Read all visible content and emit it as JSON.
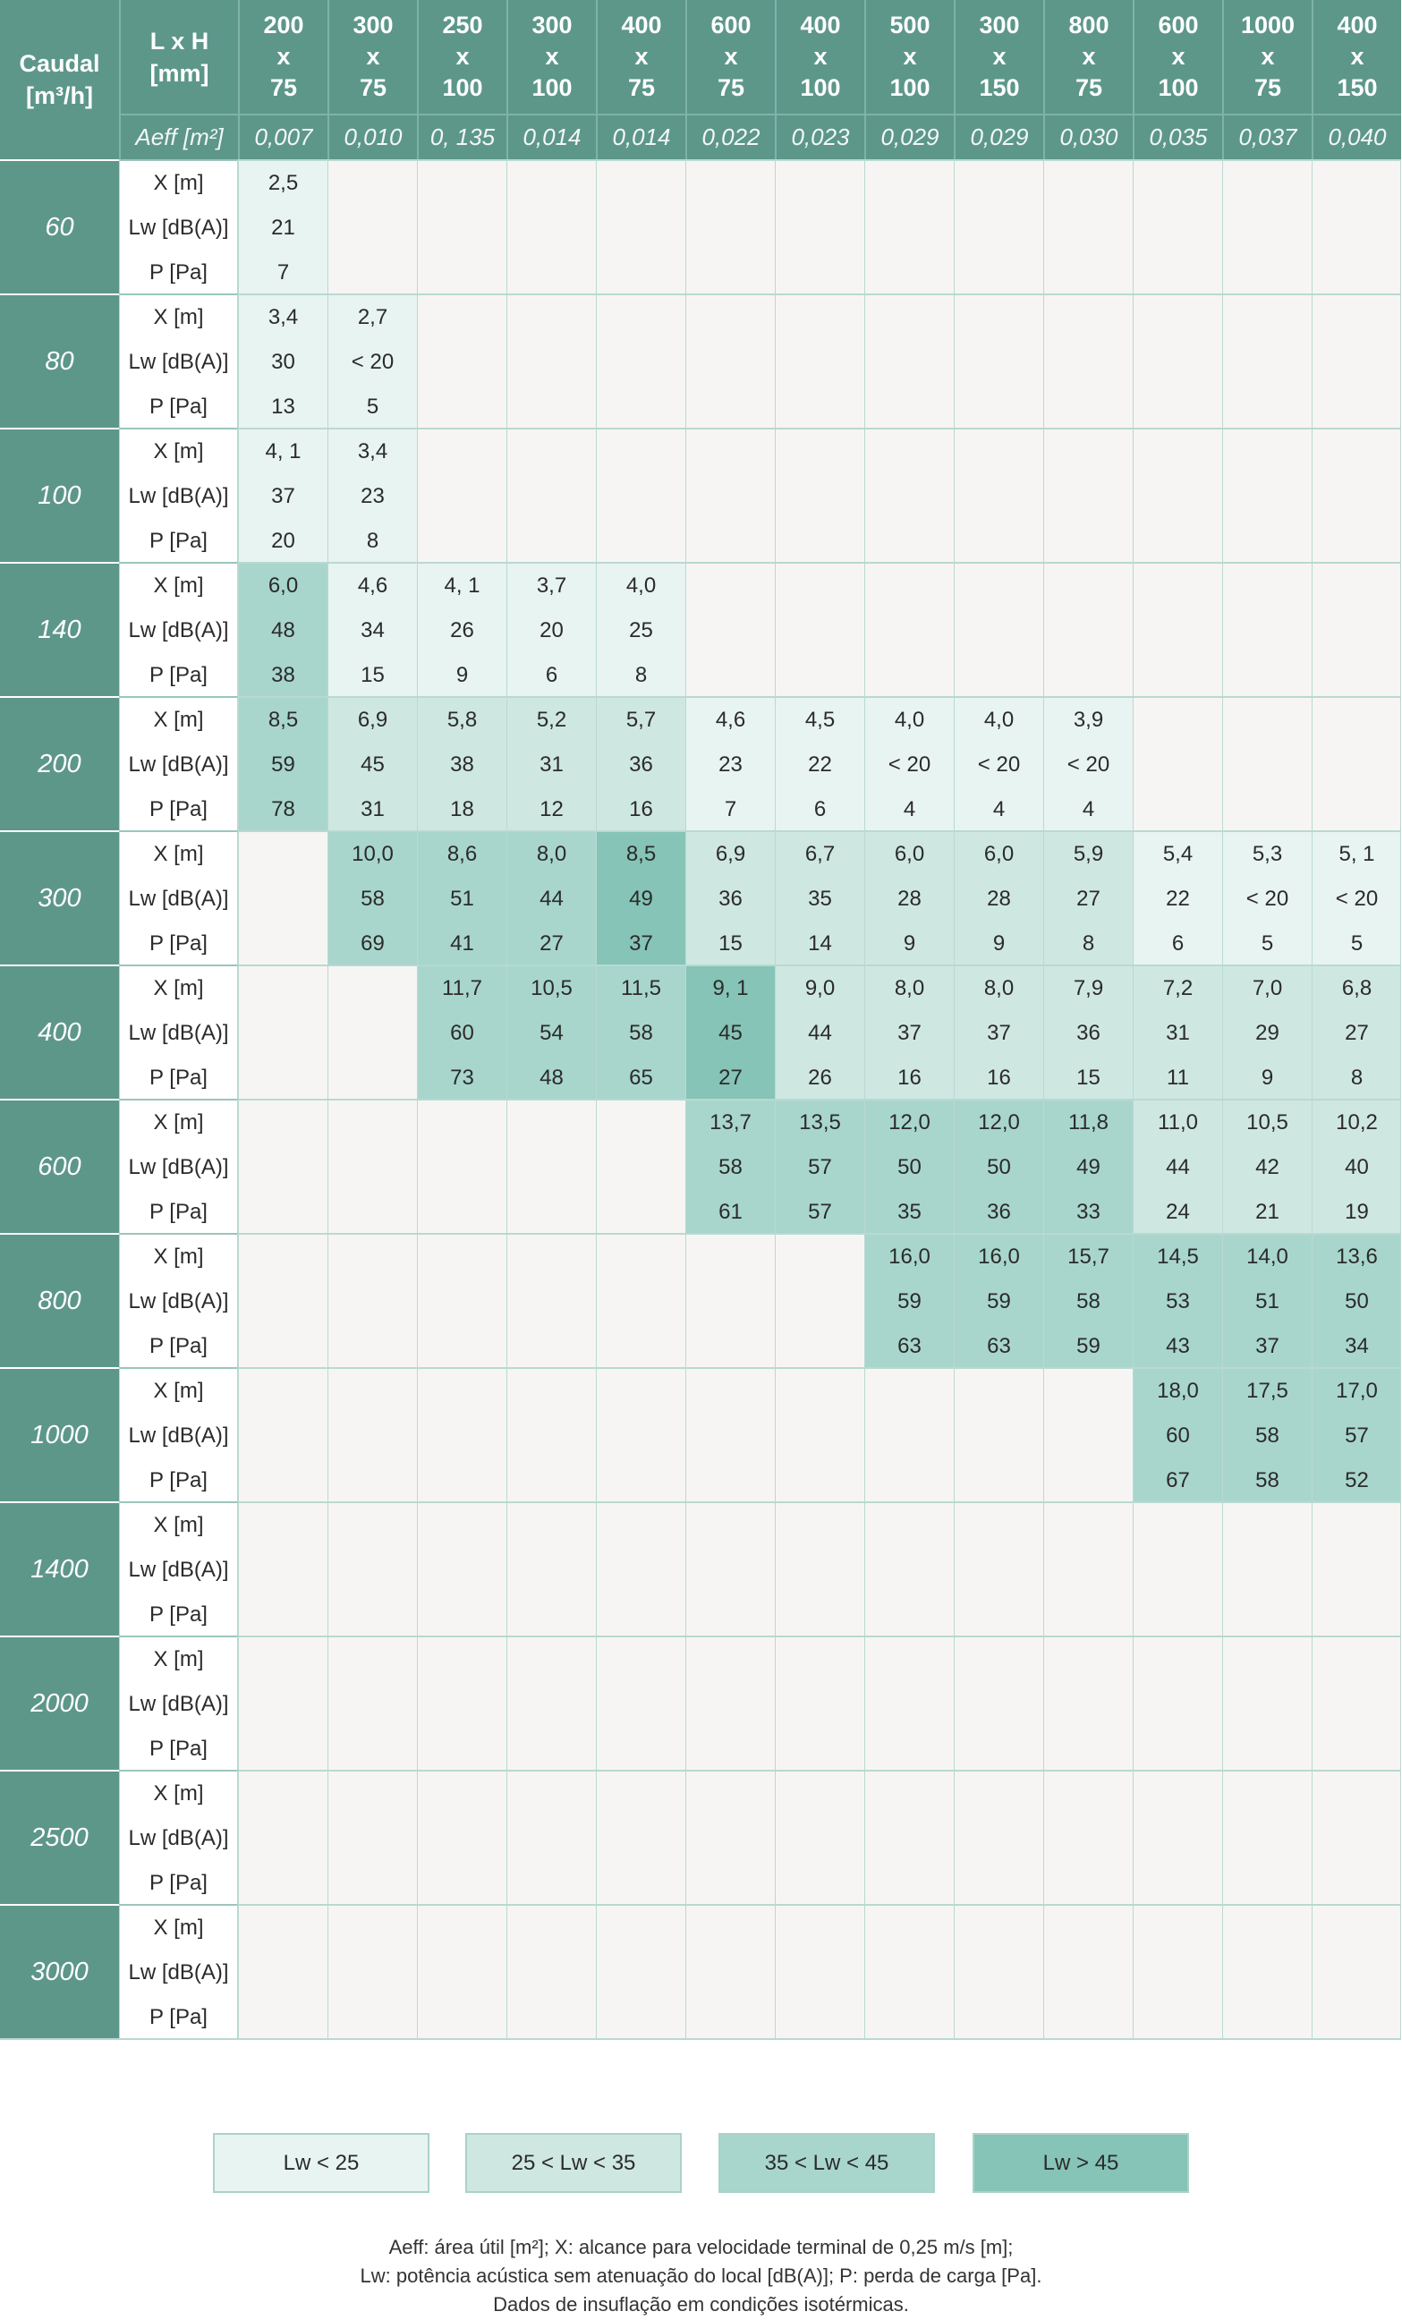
{
  "header": {
    "caudal_line1": "Caudal",
    "caudal_line2": "[m³/h]",
    "lxh_line1": "L x H",
    "lxh_line2": "[mm]",
    "aeff_label": "Aeff [m²]"
  },
  "columns": [
    {
      "w": "200",
      "x": "x",
      "h": "75",
      "aeff": "0,007"
    },
    {
      "w": "300",
      "x": "x",
      "h": "75",
      "aeff": "0,010"
    },
    {
      "w": "250",
      "x": "x",
      "h": "100",
      "aeff": "0, 135"
    },
    {
      "w": "300",
      "x": "x",
      "h": "100",
      "aeff": "0,014"
    },
    {
      "w": "400",
      "x": "x",
      "h": "75",
      "aeff": "0,014"
    },
    {
      "w": "600",
      "x": "x",
      "h": "75",
      "aeff": "0,022"
    },
    {
      "w": "400",
      "x": "x",
      "h": "100",
      "aeff": "0,023"
    },
    {
      "w": "500",
      "x": "x",
      "h": "100",
      "aeff": "0,029"
    },
    {
      "w": "300",
      "x": "x",
      "h": "150",
      "aeff": "0,029"
    },
    {
      "w": "800",
      "x": "x",
      "h": "75",
      "aeff": "0,030"
    },
    {
      "w": "600",
      "x": "x",
      "h": "100",
      "aeff": "0,035"
    },
    {
      "w": "1000",
      "x": "x",
      "h": "75",
      "aeff": "0,037"
    },
    {
      "w": "400",
      "x": "x",
      "h": "150",
      "aeff": "0,040"
    }
  ],
  "row_labels": [
    "X [m]",
    "Lw [dB(A)]",
    "P [Pa]"
  ],
  "flows": [
    "60",
    "80",
    "100",
    "140",
    "200",
    "300",
    "400",
    "600",
    "800",
    "1000",
    "1400",
    "2000",
    "2500",
    "3000"
  ],
  "rows": [
    [
      {
        "v": [
          "2,5",
          "21",
          "7"
        ],
        "c": 1
      },
      null,
      null,
      null,
      null,
      null,
      null,
      null,
      null,
      null,
      null,
      null,
      null
    ],
    [
      {
        "v": [
          "3,4",
          "30",
          "13"
        ],
        "c": 1
      },
      {
        "v": [
          "2,7",
          "< 20",
          "5"
        ],
        "c": 1
      },
      null,
      null,
      null,
      null,
      null,
      null,
      null,
      null,
      null,
      null,
      null
    ],
    [
      {
        "v": [
          "4, 1",
          "37",
          "20"
        ],
        "c": 1
      },
      {
        "v": [
          "3,4",
          "23",
          "8"
        ],
        "c": 1
      },
      null,
      null,
      null,
      null,
      null,
      null,
      null,
      null,
      null,
      null,
      null
    ],
    [
      {
        "v": [
          "6,0",
          "48",
          "38"
        ],
        "c": 3
      },
      {
        "v": [
          "4,6",
          "34",
          "15"
        ],
        "c": 1
      },
      {
        "v": [
          "4, 1",
          "26",
          "9"
        ],
        "c": 1
      },
      {
        "v": [
          "3,7",
          "20",
          "6"
        ],
        "c": 1
      },
      {
        "v": [
          "4,0",
          "25",
          "8"
        ],
        "c": 1
      },
      null,
      null,
      null,
      null,
      null,
      null,
      null,
      null
    ],
    [
      {
        "v": [
          "8,5",
          "59",
          "78"
        ],
        "c": 3
      },
      {
        "v": [
          "6,9",
          "45",
          "31"
        ],
        "c": 2
      },
      {
        "v": [
          "5,8",
          "38",
          "18"
        ],
        "c": 2
      },
      {
        "v": [
          "5,2",
          "31",
          "12"
        ],
        "c": 2
      },
      {
        "v": [
          "5,7",
          "36",
          "16"
        ],
        "c": 2
      },
      {
        "v": [
          "4,6",
          "23",
          "7"
        ],
        "c": 1
      },
      {
        "v": [
          "4,5",
          "22",
          "6"
        ],
        "c": 1
      },
      {
        "v": [
          "4,0",
          "< 20",
          "4"
        ],
        "c": 1
      },
      {
        "v": [
          "4,0",
          "< 20",
          "4"
        ],
        "c": 1
      },
      {
        "v": [
          "3,9",
          "< 20",
          "4"
        ],
        "c": 1
      },
      null,
      null,
      null
    ],
    [
      null,
      {
        "v": [
          "10,0",
          "58",
          "69"
        ],
        "c": 3
      },
      {
        "v": [
          "8,6",
          "51",
          "41"
        ],
        "c": 3
      },
      {
        "v": [
          "8,0",
          "44",
          "27"
        ],
        "c": 3
      },
      {
        "v": [
          "8,5",
          "49",
          "37"
        ],
        "c": 4
      },
      {
        "v": [
          "6,9",
          "36",
          "15"
        ],
        "c": 2
      },
      {
        "v": [
          "6,7",
          "35",
          "14"
        ],
        "c": 2
      },
      {
        "v": [
          "6,0",
          "28",
          "9"
        ],
        "c": 2
      },
      {
        "v": [
          "6,0",
          "28",
          "9"
        ],
        "c": 2
      },
      {
        "v": [
          "5,9",
          "27",
          "8"
        ],
        "c": 2
      },
      {
        "v": [
          "5,4",
          "22",
          "6"
        ],
        "c": 1
      },
      {
        "v": [
          "5,3",
          "< 20",
          "5"
        ],
        "c": 1
      },
      {
        "v": [
          "5, 1",
          "< 20",
          "5"
        ],
        "c": 1
      }
    ],
    [
      null,
      null,
      {
        "v": [
          "11,7",
          "60",
          "73"
        ],
        "c": 3
      },
      {
        "v": [
          "10,5",
          "54",
          "48"
        ],
        "c": 3
      },
      {
        "v": [
          "11,5",
          "58",
          "65"
        ],
        "c": 3
      },
      {
        "v": [
          "9, 1",
          "45",
          "27"
        ],
        "c": 4
      },
      {
        "v": [
          "9,0",
          "44",
          "26"
        ],
        "c": 2
      },
      {
        "v": [
          "8,0",
          "37",
          "16"
        ],
        "c": 2
      },
      {
        "v": [
          "8,0",
          "37",
          "16"
        ],
        "c": 2
      },
      {
        "v": [
          "7,9",
          "36",
          "15"
        ],
        "c": 2
      },
      {
        "v": [
          "7,2",
          "31",
          "11"
        ],
        "c": 2
      },
      {
        "v": [
          "7,0",
          "29",
          "9"
        ],
        "c": 2
      },
      {
        "v": [
          "6,8",
          "27",
          "8"
        ],
        "c": 2
      }
    ],
    [
      null,
      null,
      null,
      null,
      null,
      {
        "v": [
          "13,7",
          "58",
          "61"
        ],
        "c": 3
      },
      {
        "v": [
          "13,5",
          "57",
          "57"
        ],
        "c": 3
      },
      {
        "v": [
          "12,0",
          "50",
          "35"
        ],
        "c": 3
      },
      {
        "v": [
          "12,0",
          "50",
          "36"
        ],
        "c": 3
      },
      {
        "v": [
          "11,8",
          "49",
          "33"
        ],
        "c": 3
      },
      {
        "v": [
          "11,0",
          "44",
          "24"
        ],
        "c": 2
      },
      {
        "v": [
          "10,5",
          "42",
          "21"
        ],
        "c": 2
      },
      {
        "v": [
          "10,2",
          "40",
          "19"
        ],
        "c": 2
      }
    ],
    [
      null,
      null,
      null,
      null,
      null,
      null,
      null,
      {
        "v": [
          "16,0",
          "59",
          "63"
        ],
        "c": 3
      },
      {
        "v": [
          "16,0",
          "59",
          "63"
        ],
        "c": 3
      },
      {
        "v": [
          "15,7",
          "58",
          "59"
        ],
        "c": 3
      },
      {
        "v": [
          "14,5",
          "53",
          "43"
        ],
        "c": 3
      },
      {
        "v": [
          "14,0",
          "51",
          "37"
        ],
        "c": 3
      },
      {
        "v": [
          "13,6",
          "50",
          "34"
        ],
        "c": 3
      }
    ],
    [
      null,
      null,
      null,
      null,
      null,
      null,
      null,
      null,
      null,
      null,
      {
        "v": [
          "18,0",
          "60",
          "67"
        ],
        "c": 3
      },
      {
        "v": [
          "17,5",
          "58",
          "58"
        ],
        "c": 3
      },
      {
        "v": [
          "17,0",
          "57",
          "52"
        ],
        "c": 3
      }
    ],
    [
      null,
      null,
      null,
      null,
      null,
      null,
      null,
      null,
      null,
      null,
      null,
      null,
      null
    ],
    [
      null,
      null,
      null,
      null,
      null,
      null,
      null,
      null,
      null,
      null,
      null,
      null,
      null
    ],
    [
      null,
      null,
      null,
      null,
      null,
      null,
      null,
      null,
      null,
      null,
      null,
      null,
      null
    ],
    [
      null,
      null,
      null,
      null,
      null,
      null,
      null,
      null,
      null,
      null,
      null,
      null,
      null
    ]
  ],
  "legend": [
    {
      "label": "Lw < 25",
      "color": "#e8f4f1"
    },
    {
      "label": "25 < Lw < 35",
      "color": "#cfe7e1"
    },
    {
      "label": "35 < Lw < 45",
      "color": "#a8d6cc"
    },
    {
      "label": "Lw > 45",
      "color": "#85c4b6"
    }
  ],
  "notes": {
    "line1": "Aeff: área útil [m²]; X: alcance para velocidade terminal de 0,25 m/s [m];",
    "line2": "Lw: potência acústica sem atenuação do local [dB(A)]; P: perda de carga [Pa].",
    "line3": "Dados de insuflação em condições isotérmicas."
  },
  "colors": {
    "header": "#5d978a",
    "empty": "#f7f5f3",
    "grid_line": "#b9d9d2"
  }
}
